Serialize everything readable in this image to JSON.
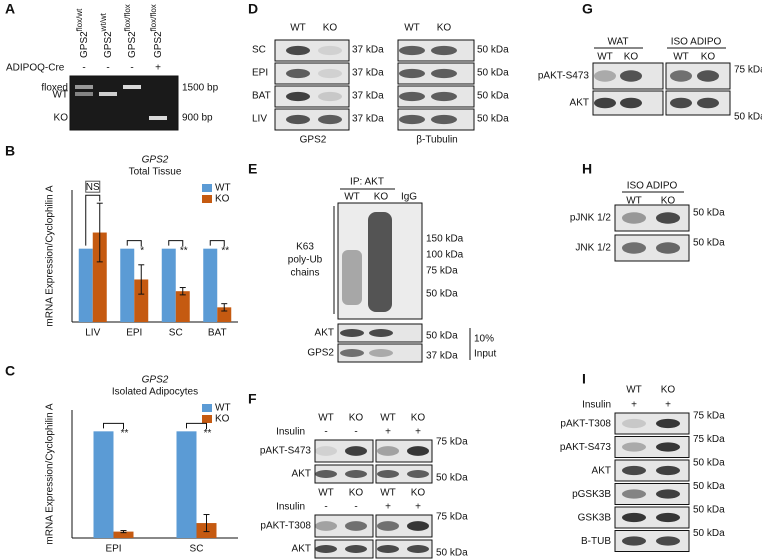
{
  "panel_a": {
    "label": "A",
    "cre_label": "ADIPOQ-Cre",
    "lanes": [
      {
        "cre": "-",
        "name": "GPS2",
        "genotype": "flox/wt"
      },
      {
        "cre": "-",
        "name": "GPS2",
        "genotype": "wt/wt"
      },
      {
        "cre": "-",
        "name": "GPS2",
        "genotype": "flox/flox"
      },
      {
        "cre": "+",
        "name": "GPS2",
        "genotype": "flox/flox"
      }
    ],
    "bands_left": [
      "floxed",
      "WT",
      "KO"
    ],
    "markers": [
      "1500 bp",
      "900 bp"
    ]
  },
  "panel_b": {
    "label": "B",
    "type": "bar",
    "title": "GPS2",
    "subtitle": "Total Tissue",
    "y_label": "mRNA Expression/Cyclophilin A",
    "categories": [
      "LIV",
      "EPI",
      "SC",
      "BAT"
    ],
    "series": [
      {
        "name": "WT",
        "color": "#5b9bd5",
        "values": [
          1,
          1,
          1,
          1
        ]
      },
      {
        "name": "KO",
        "color": "#c55a11",
        "values": [
          1.22,
          0.58,
          0.42,
          0.2
        ],
        "errors": [
          0.4,
          0.2,
          0.05,
          0.05
        ]
      }
    ],
    "significance": [
      "NS",
      "*",
      "**",
      "**"
    ],
    "ylim": [
      0,
      1.8
    ]
  },
  "panel_c": {
    "label": "C",
    "type": "bar",
    "title": "GPS2",
    "subtitle": "Isolated Adipocytes",
    "y_label": "mRNA Expression/Cyclophilin A",
    "categories": [
      "EPI",
      "SC"
    ],
    "series": [
      {
        "name": "WT",
        "color": "#5b9bd5",
        "values": [
          1,
          1
        ]
      },
      {
        "name": "KO",
        "color": "#c55a11",
        "values": [
          0.06,
          0.14
        ],
        "errors": [
          0.01,
          0.08
        ]
      }
    ],
    "significance": [
      "**",
      "**"
    ],
    "ylim": [
      0,
      1.2
    ]
  },
  "panel_d": {
    "label": "D",
    "columns": [
      "WT",
      "KO"
    ],
    "rows": [
      "SC",
      "EPI",
      "BAT",
      "LIV"
    ],
    "markers_left": [
      "37 kDa",
      "37 kDa",
      "37 kDa",
      "37 kDa"
    ],
    "markers_right": [
      "50 kDa",
      "50 kDa",
      "50 kDa",
      "50 kDa"
    ],
    "captions": [
      "GPS2",
      "β-Tubulin"
    ]
  },
  "panel_e": {
    "label": "E",
    "ip": "IP: AKT",
    "lanes": [
      "WT",
      "KO",
      "IgG"
    ],
    "blot_label": [
      "K63",
      "poly-Ub",
      "chains"
    ],
    "markers": [
      "150 kDa",
      "100 kDa",
      "75 kDa",
      "50 kDa"
    ],
    "input_rows": [
      "AKT",
      "GPS2"
    ],
    "input_markers": [
      "50 kDa",
      "37 kDa"
    ],
    "input_label": [
      "10%",
      "Input"
    ]
  },
  "panel_f": {
    "label": "F",
    "blocks": [
      {
        "lanes": [
          "WT",
          "KO",
          "WT",
          "KO"
        ],
        "insulin_label": "Insulin",
        "insulin": [
          "-",
          "-",
          "+",
          "+"
        ],
        "rows": [
          "pAKT-S473",
          "AKT"
        ],
        "markers": [
          "75 kDa",
          "50 kDa"
        ]
      },
      {
        "lanes": [
          "WT",
          "KO",
          "WT",
          "KO"
        ],
        "insulin_label": "Insulin",
        "insulin": [
          "-",
          "-",
          "+",
          "+"
        ],
        "rows": [
          "pAKT-T308",
          "AKT"
        ],
        "markers": [
          "75 kDa",
          "50 kDa"
        ]
      }
    ]
  },
  "panel_g": {
    "label": "G",
    "groups": [
      "WAT",
      "ISO ADIPO"
    ],
    "lanes": [
      "WT",
      "KO",
      "WT",
      "KO"
    ],
    "rows": [
      "pAKT-S473",
      "AKT"
    ],
    "markers": [
      "75 kDa",
      "50 kDa"
    ]
  },
  "panel_h": {
    "label": "H",
    "group": "ISO ADIPO",
    "lanes": [
      "WT",
      "KO"
    ],
    "rows": [
      "pJNK 1/2",
      "JNK 1/2"
    ],
    "markers": [
      "50 kDa",
      "50 kDa"
    ]
  },
  "panel_i": {
    "label": "I",
    "lanes": [
      "WT",
      "KO"
    ],
    "insulin_label": "Insulin",
    "insulin": [
      "+",
      "+"
    ],
    "rows": [
      "pAKT-T308",
      "pAKT-S473",
      "AKT",
      "pGSK3B",
      "GSK3B",
      "B-TUB"
    ],
    "markers": [
      "75 kDa",
      "75 kDa",
      "50 kDa",
      "50 kDa",
      "50 kDa",
      "50 kDa"
    ]
  }
}
